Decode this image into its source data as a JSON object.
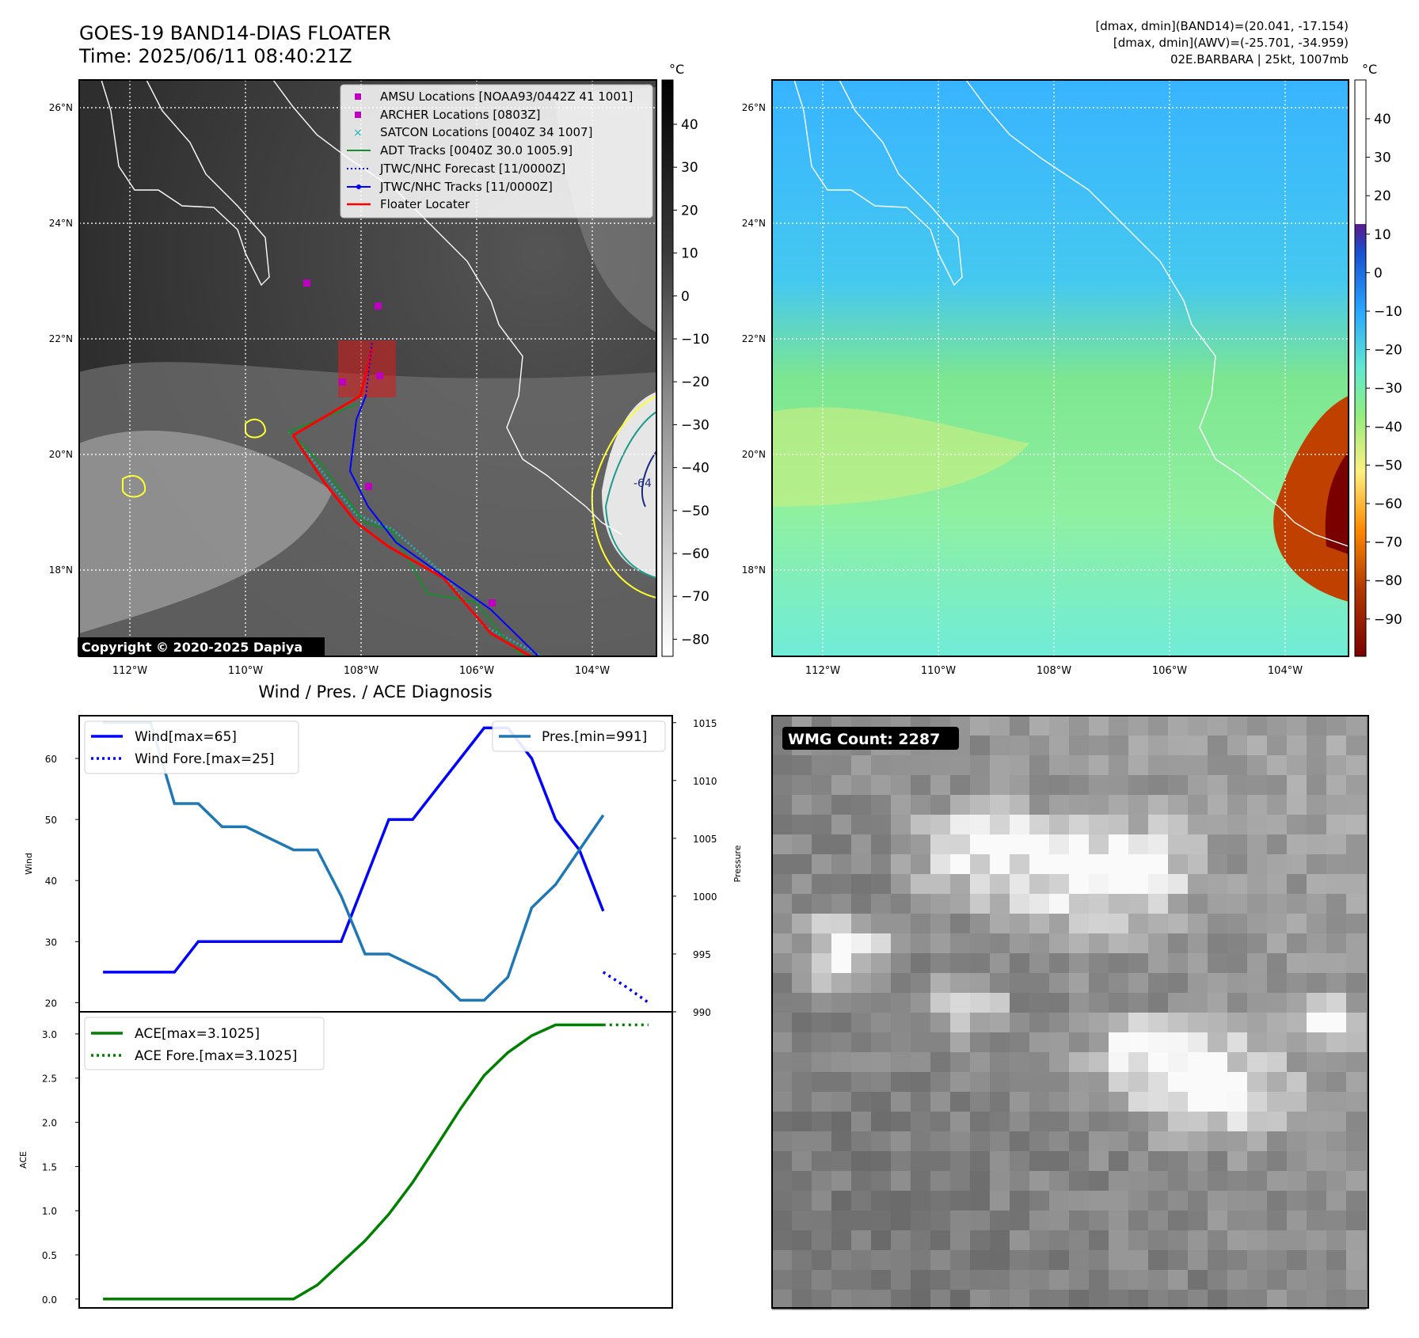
{
  "header": {
    "title_line1": "GOES-19 BAND14-DIAS FLOATER",
    "title_line2": "Time: 2025/06/11 08:40:21Z",
    "info_line1": "[dmax, dmin](BAND14)=(20.041, -17.154)",
    "info_line2": "[dmax, dmin](AWV)=(-25.701, -34.959)",
    "info_line3": "02E.BARBARA | 25kt, 1007mb"
  },
  "maps": {
    "lon_labels": [
      "112°W",
      "110°W",
      "108°W",
      "106°W",
      "104°W"
    ],
    "lat_labels": [
      "26°N",
      "24°N",
      "22°N",
      "20°N",
      "18°N"
    ],
    "copyright": "Copyright © 2020-2025 Dapiya",
    "cbar_unit": "°C",
    "ir_cbar_ticks": [
      "40",
      "30",
      "20",
      "10",
      "0",
      "−10",
      "−20",
      "−30",
      "−40",
      "−50",
      "−60",
      "−70",
      "−80"
    ],
    "wv_cbar_ticks": [
      "40",
      "30",
      "20",
      "10",
      "0",
      "−10",
      "−20",
      "−30",
      "−40",
      "−50",
      "−60",
      "−70",
      "−80",
      "−90"
    ],
    "contour_label": "-64",
    "legend": [
      "AMSU Locations [NOAA93/0442Z 41 1001]",
      "ARCHER Locations [0803Z]",
      "SATCON Locations [0040Z 34 1007]",
      "ADT Tracks [0040Z 30.0 1005.9]",
      "JTWC/NHC Forecast [11/0000Z]",
      "JTWC/NHC Tracks [11/0000Z]",
      "Floater Locater"
    ]
  },
  "wmg": {
    "label": "WMG Count: 2287"
  },
  "colors": {
    "wind": "#0000ff",
    "pressure": "#1f77b4",
    "ace": "#008000",
    "amsu": "#c000c0",
    "satcon": "#19b8b8",
    "adt": "#148f2c",
    "floater": "#ff0000"
  },
  "chart_data": [
    {
      "type": "line",
      "title": "Wind / Pres. / ACE Diagnosis",
      "ylabel": "Wind",
      "ylabel_right": "Pressure",
      "ylim": [
        18.5,
        67
      ],
      "ylim_right": [
        990,
        1015.6
      ],
      "yticks": [
        20,
        30,
        40,
        50,
        60
      ],
      "yticks_right": [
        990,
        995,
        1000,
        1005,
        1010,
        1015
      ],
      "x": [
        0,
        1,
        2,
        3,
        4,
        5,
        6,
        7,
        8,
        9,
        10,
        11,
        12,
        13,
        14,
        15,
        16,
        17,
        18,
        19,
        20,
        21,
        22,
        23
      ],
      "xlim": [
        -1,
        23.9
      ],
      "series": [
        {
          "name": "Wind[max=65]",
          "x": [
            0,
            1,
            2,
            3,
            4,
            5,
            6,
            7,
            8,
            9,
            10,
            11,
            12,
            13,
            14,
            15,
            16,
            17,
            18,
            19,
            20,
            21
          ],
          "values": [
            25,
            25,
            25,
            25,
            30,
            30,
            30,
            30,
            30,
            30,
            30,
            40,
            50,
            50,
            55,
            60,
            65,
            65,
            60,
            50,
            45,
            35
          ],
          "style": "solid"
        },
        {
          "name": "Wind Fore.[max=25]",
          "x": [
            21,
            22,
            22.9
          ],
          "values": [
            25,
            22.5,
            20
          ],
          "style": "dotted"
        },
        {
          "name": "Pres.[min=991]",
          "axis": "right",
          "x": [
            0,
            1,
            2,
            3,
            4,
            5,
            6,
            7,
            8,
            9,
            10,
            11,
            12,
            13,
            14,
            15,
            16,
            17,
            18,
            19,
            20,
            21
          ],
          "values": [
            1015,
            1015,
            1015,
            1008,
            1008,
            1006,
            1006,
            1005,
            1004,
            1004,
            1000,
            995,
            995,
            994,
            993,
            991,
            991,
            993,
            999,
            1001,
            1004,
            1007
          ],
          "style": "solid"
        }
      ]
    },
    {
      "type": "line",
      "ylabel": "ACE",
      "ylim": [
        -0.1,
        3.25
      ],
      "yticks": [
        0.0,
        0.5,
        1.0,
        1.5,
        2.0,
        2.5,
        3.0
      ],
      "ytick_labels": [
        "0.0",
        "0.5",
        "1.0",
        "1.5",
        "2.0",
        "2.5",
        "3.0"
      ],
      "xlim": [
        -1,
        23.9
      ],
      "series": [
        {
          "name": "ACE[max=3.1025]",
          "x": [
            0,
            1,
            2,
            3,
            4,
            5,
            6,
            7,
            8,
            9,
            10,
            11,
            12,
            13,
            14,
            15,
            16,
            17,
            18,
            19,
            20,
            21
          ],
          "values": [
            0,
            0,
            0,
            0,
            0,
            0,
            0,
            0,
            0,
            0.16,
            0.41,
            0.66,
            0.96,
            1.32,
            1.73,
            2.15,
            2.53,
            2.79,
            2.98,
            3.1025,
            3.1025,
            3.1025
          ],
          "style": "solid"
        },
        {
          "name": "ACE Fore.[max=3.1025]",
          "x": [
            21,
            22,
            22.9
          ],
          "values": [
            3.1025,
            3.1025,
            3.1025
          ],
          "style": "dotted"
        }
      ]
    }
  ]
}
